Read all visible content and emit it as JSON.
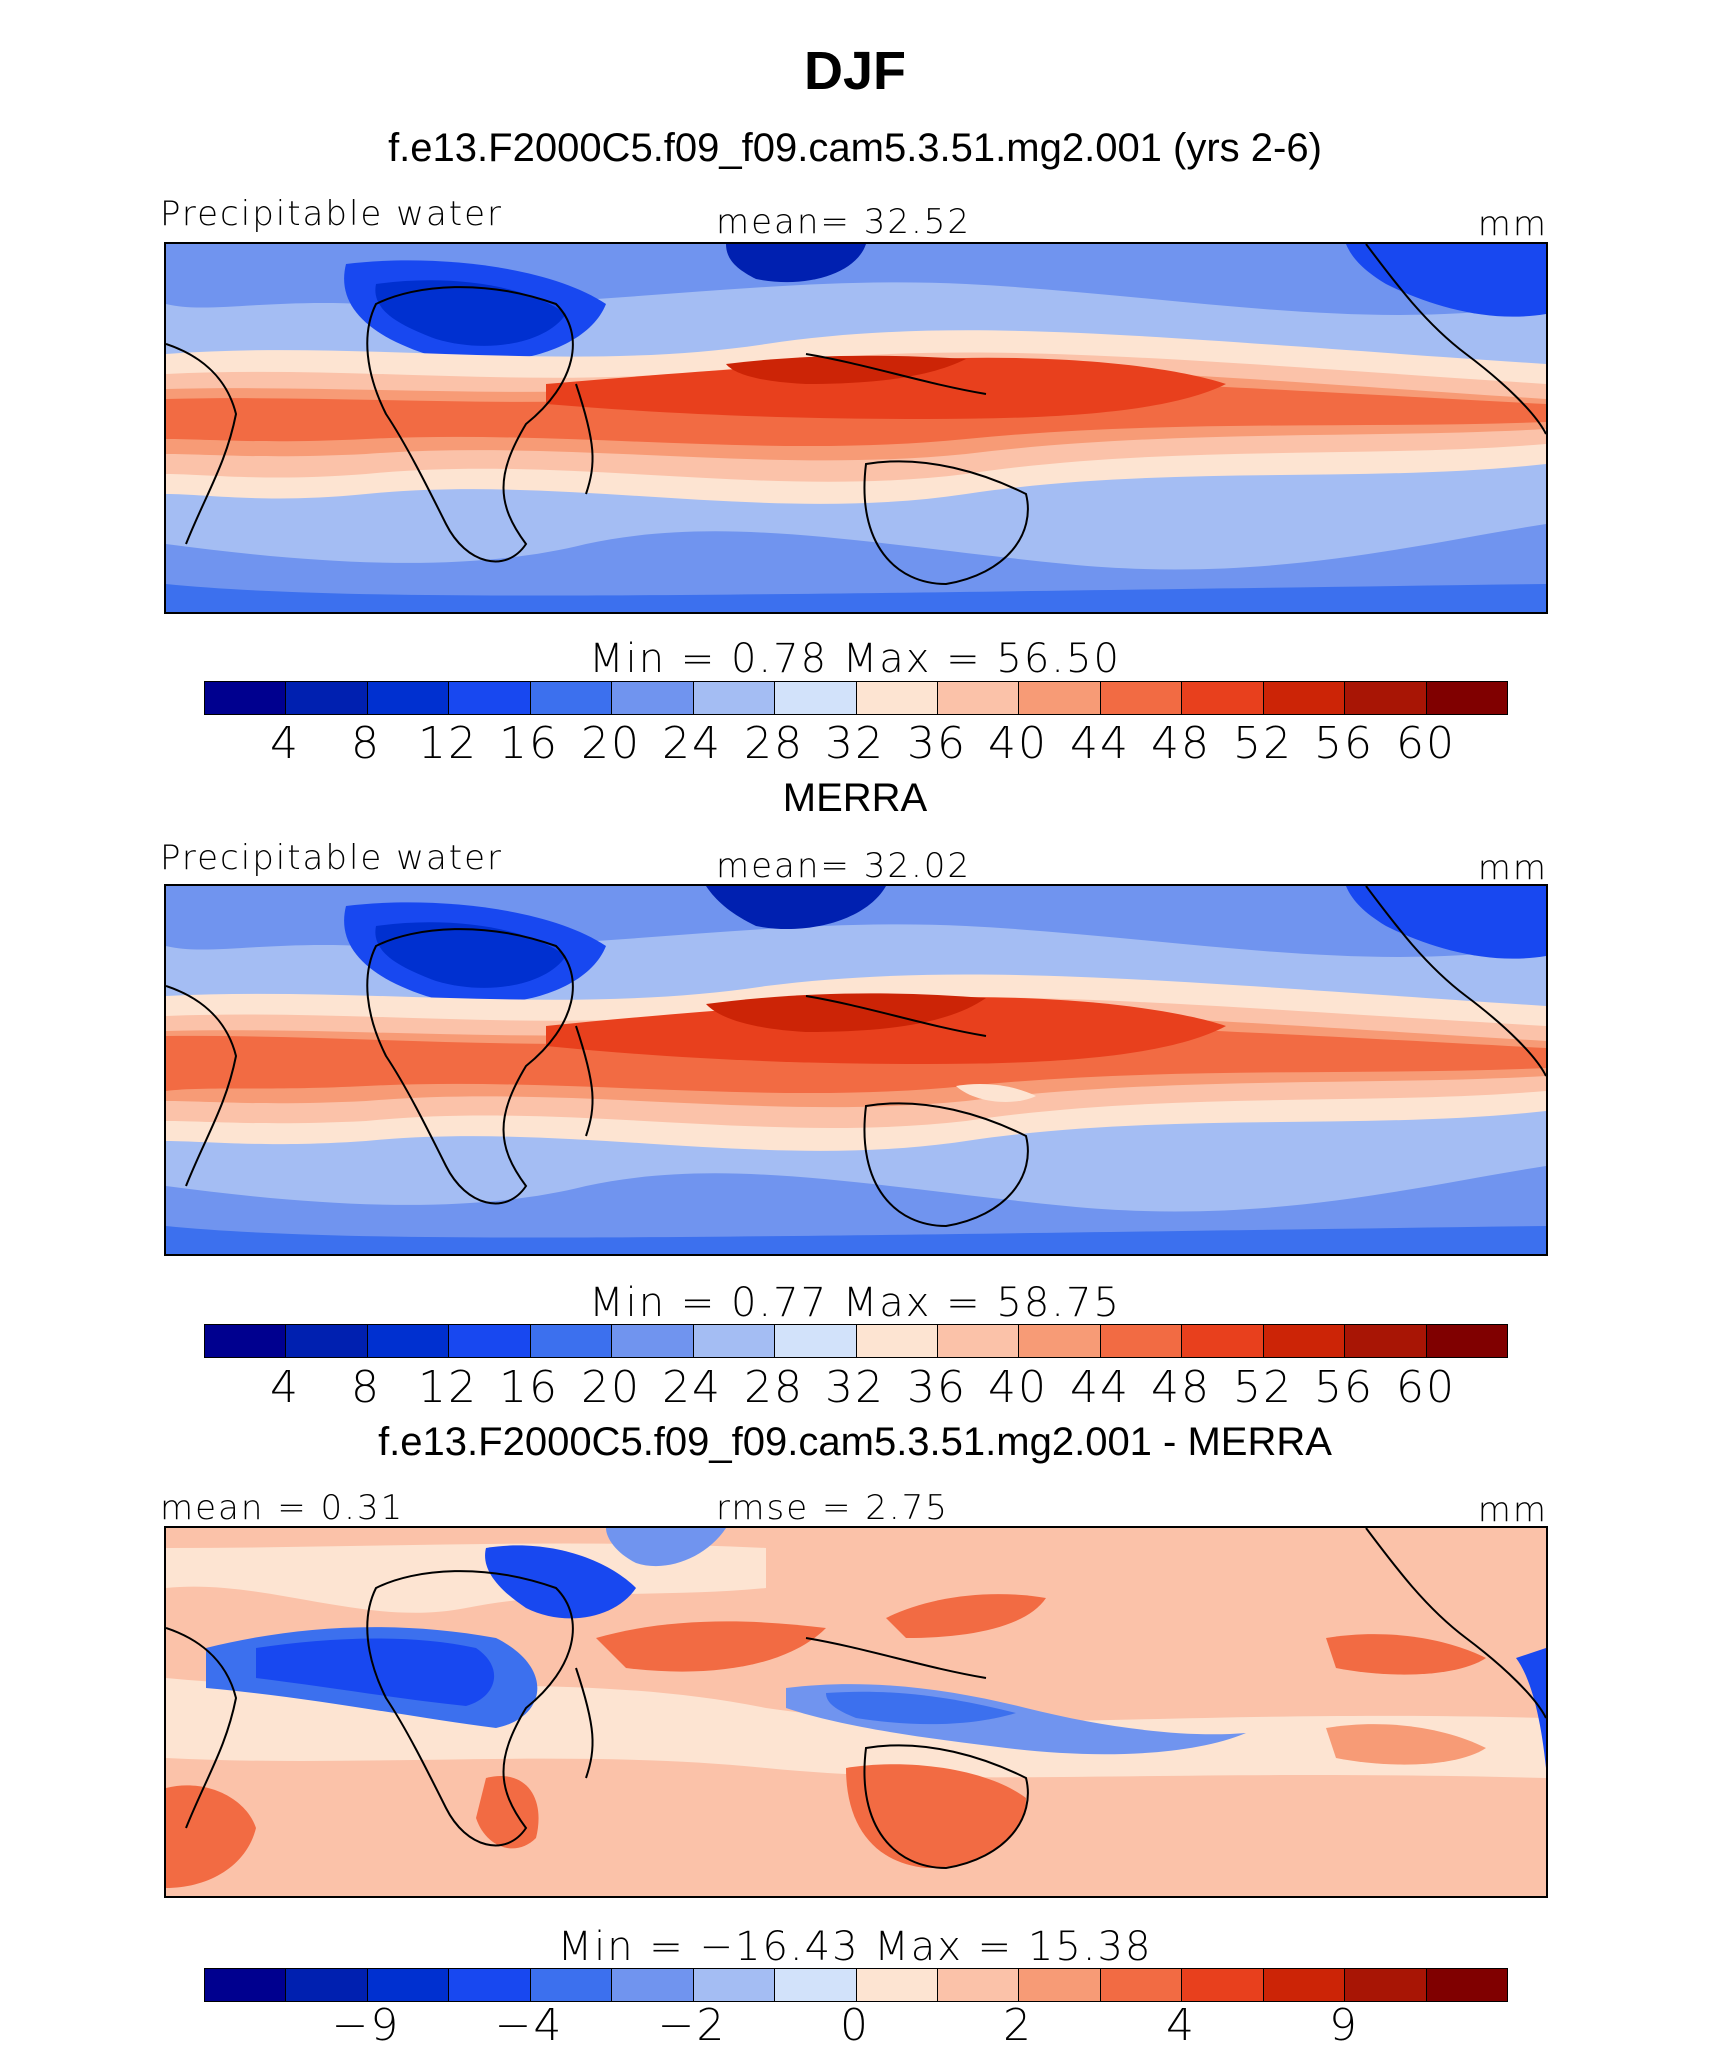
{
  "page_title": "DJF",
  "colors": {
    "precip": [
      "#00008f",
      "#0020b0",
      "#0030d0",
      "#1848f0",
      "#3c70ee",
      "#7094ef",
      "#a4bdf3",
      "#d2e2fa",
      "#fde4d2",
      "#fbc2a9",
      "#f79b76",
      "#f26b43",
      "#e8401d",
      "#cc2406",
      "#a81505",
      "#800000"
    ],
    "diff": [
      "#00008f",
      "#0020b0",
      "#0030d0",
      "#1848f0",
      "#3c70ee",
      "#7094ef",
      "#a4bdf3",
      "#d2e2fa",
      "#fde4d2",
      "#fbc2a9",
      "#f79b76",
      "#f26b43",
      "#e8401d",
      "#cc2406",
      "#a81505",
      "#800000"
    ]
  },
  "panels": [
    {
      "title": "f.e13.F2000C5.f09_f09.cam5.3.51.mg2.001 (yrs 2-6)",
      "left_label": "Precipitable water",
      "center_label": "mean=   32.52",
      "right_label": "mm",
      "minmax": "Min  =     0.78  Max  =     56.50",
      "ticks": [
        "4",
        "8",
        "12",
        "16",
        "20",
        "24",
        "28",
        "32",
        "36",
        "40",
        "44",
        "48",
        "52",
        "56",
        "60"
      ]
    },
    {
      "title": "MERRA",
      "left_label": "Precipitable water",
      "center_label": "mean=   32.02",
      "right_label": "mm",
      "minmax": "Min  =     0.77  Max  =     58.75",
      "ticks": [
        "4",
        "8",
        "12",
        "16",
        "20",
        "24",
        "28",
        "32",
        "36",
        "40",
        "44",
        "48",
        "52",
        "56",
        "60"
      ]
    },
    {
      "title": "f.e13.F2000C5.f09_f09.cam5.3.51.mg2.001 - MERRA",
      "left_label": "mean  =    0.31",
      "center_label": "rmse  =    2.75",
      "right_label": "mm",
      "minmax": "Min  = −16.43  Max  =    15.38",
      "ticks": [
        "−9",
        "−4",
        "−2",
        "0",
        "2",
        "4",
        "9"
      ]
    }
  ]
}
